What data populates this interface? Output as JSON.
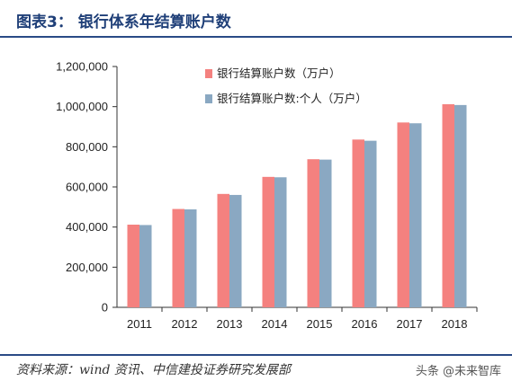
{
  "header": {
    "title": "图表3：  银行体系年结算账户数"
  },
  "footer": {
    "source": "资料来源：wind 资讯、中信建投证券研究发展部"
  },
  "watermark": {
    "text": "头条 @未来智库"
  },
  "colors": {
    "series1": "#f4817f",
    "series2": "#8aa8c2",
    "accent": "#2a4a86"
  },
  "chart_data": {
    "type": "bar",
    "categories": [
      "2011",
      "2012",
      "2013",
      "2014",
      "2015",
      "2016",
      "2017",
      "2018"
    ],
    "series": [
      {
        "name": "银行结算账户数（万户）",
        "values": [
          412000,
          490000,
          565000,
          650000,
          738000,
          836000,
          921000,
          1012000
        ]
      },
      {
        "name": "银行结算账户数:个人（万户）",
        "values": [
          410000,
          488000,
          560000,
          648000,
          736000,
          830000,
          917000,
          1008000
        ]
      }
    ],
    "yticks": [
      "0",
      "200,000",
      "400,000",
      "600,000",
      "800,000",
      "1,000,000",
      "1,200,000"
    ],
    "ylim": [
      0,
      1200000
    ],
    "grid": false,
    "legend_position": "top-left"
  }
}
